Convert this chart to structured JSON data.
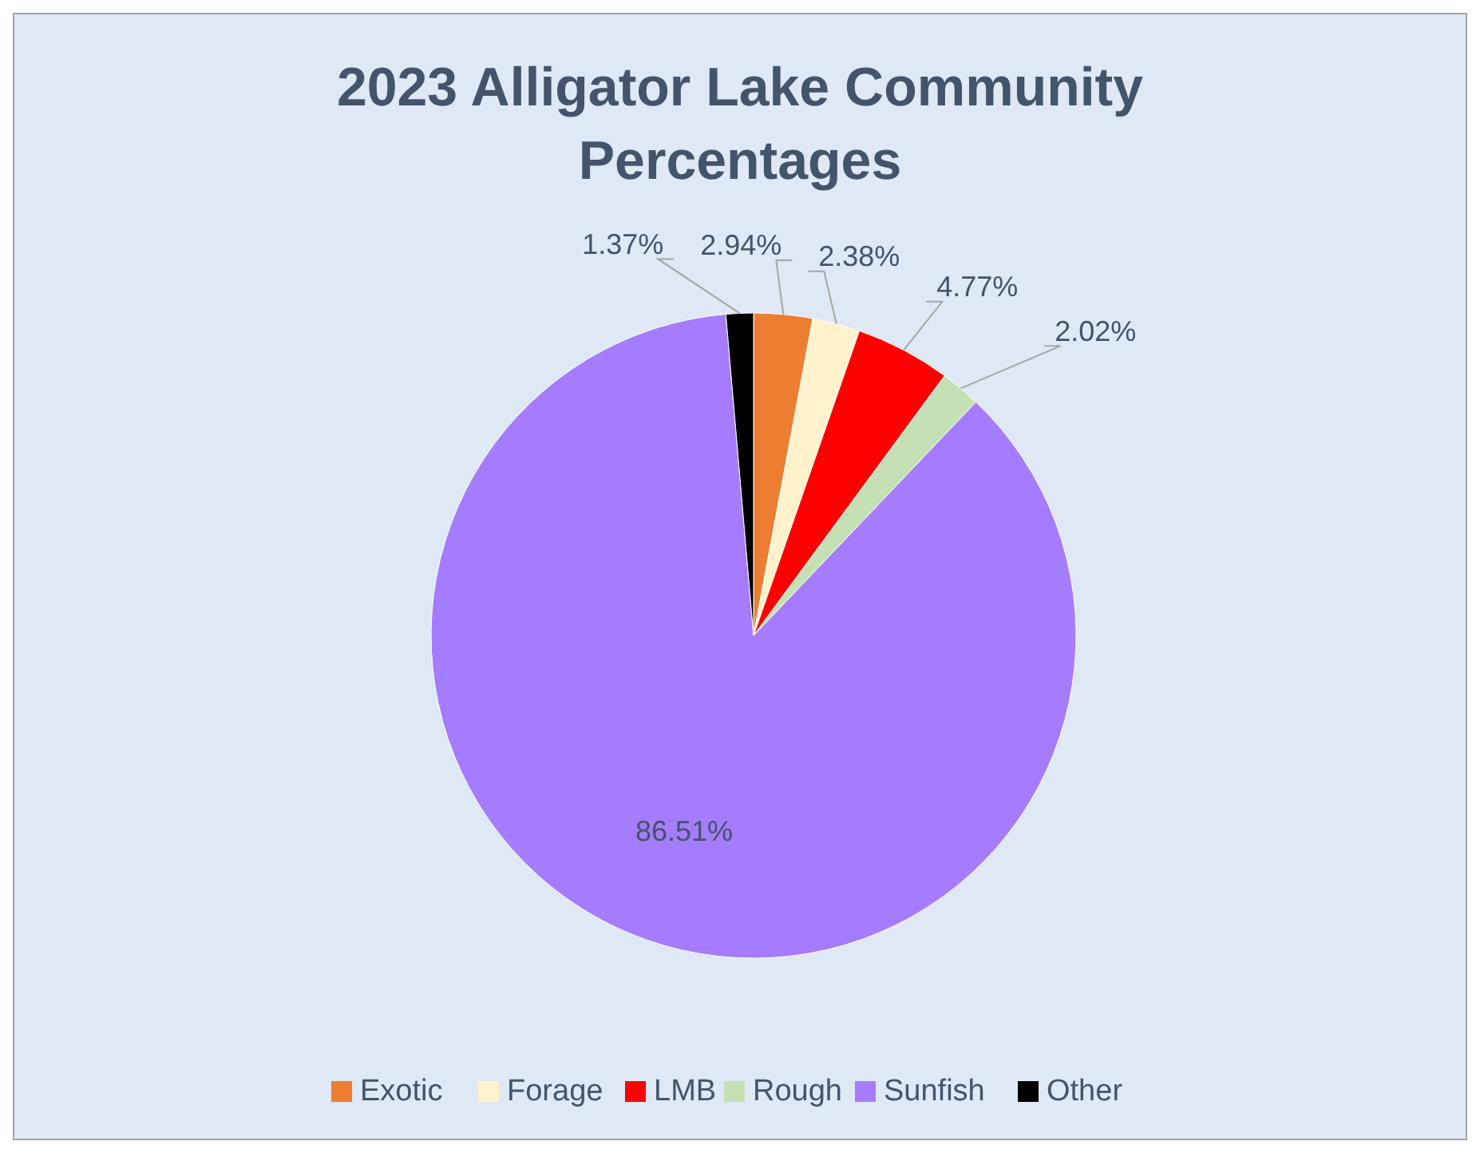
{
  "chart_data": {
    "type": "pie",
    "title": "2023 Alligator Lake Community Percentages",
    "categories": [
      "Exotic",
      "Forage",
      "LMB",
      "Rough",
      "Sunfish",
      "Other"
    ],
    "values": [
      2.94,
      2.38,
      4.77,
      2.02,
      86.51,
      1.37
    ],
    "colors": [
      "#ed7d31",
      "#fff2cc",
      "#ff0000",
      "#c5e0b4",
      "#a67cff",
      "#000000"
    ],
    "value_labels": [
      "2.94%",
      "2.38%",
      "4.77%",
      "2.02%",
      "86.51%",
      "1.37%"
    ],
    "legend": "bottom"
  }
}
